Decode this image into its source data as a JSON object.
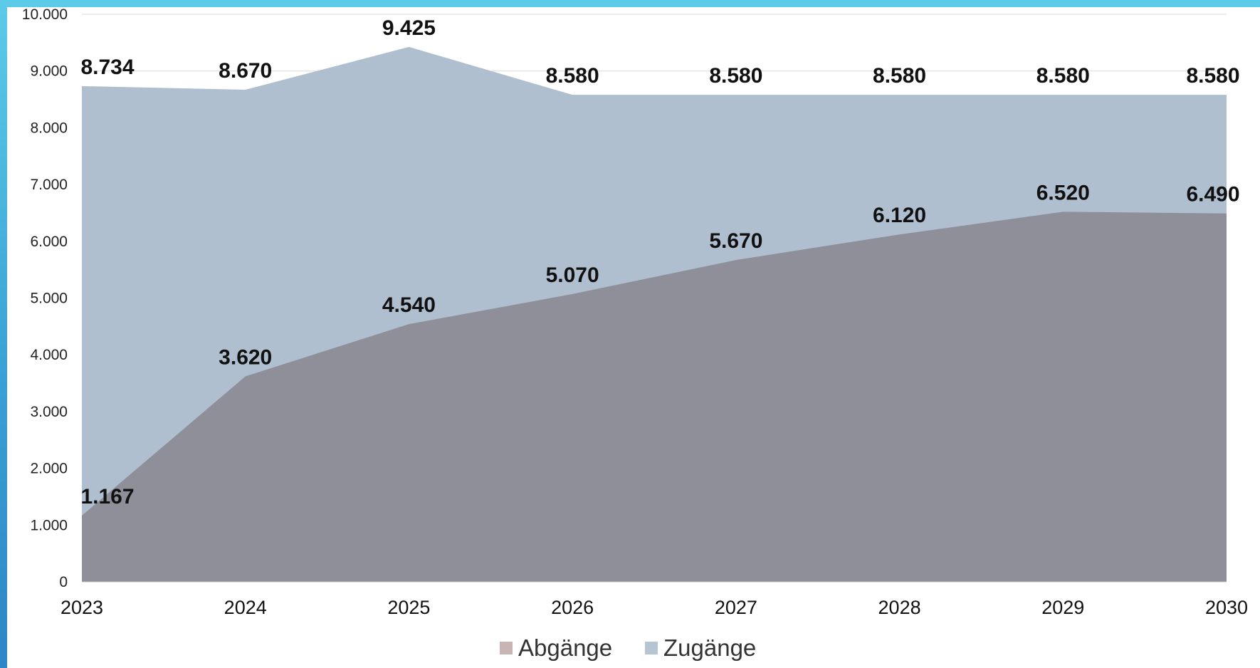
{
  "chart_data": {
    "type": "area",
    "categories": [
      "2023",
      "2024",
      "2025",
      "2026",
      "2027",
      "2028",
      "2029",
      "2030"
    ],
    "series": [
      {
        "name": "Abgänge",
        "values": [
          1167,
          3620,
          4540,
          5070,
          5670,
          6120,
          6520,
          6490
        ],
        "labels": [
          "1.167",
          "3.620",
          "4.540",
          "5.070",
          "5.670",
          "6.120",
          "6.520",
          "6.490"
        ],
        "color": "#8e8f98"
      },
      {
        "name": "Zugänge",
        "values": [
          8734,
          8670,
          9425,
          8580,
          8580,
          8580,
          8580,
          8580
        ],
        "labels": [
          "8.734",
          "8.670",
          "9.425",
          "8.580",
          "8.580",
          "8.580",
          "8.580",
          "8.580"
        ],
        "color": "#afbfd0"
      }
    ],
    "yticks": [
      "0",
      "1.000",
      "2.000",
      "3.000",
      "4.000",
      "5.000",
      "6.000",
      "7.000",
      "8.000",
      "9.000",
      "10.000"
    ],
    "ylim": [
      0,
      10000
    ],
    "grid": true,
    "legend_position": "bottom-center",
    "legend_swatch_colors": [
      "#c8b4b4",
      "#b7c4d2"
    ]
  }
}
